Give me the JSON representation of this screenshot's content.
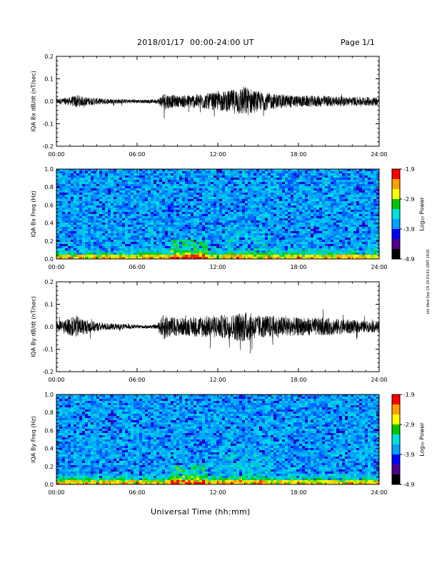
{
  "header": {
    "title": "2018/01/17  00:00-24:00 UT",
    "page": "Page 1/1"
  },
  "footer": {
    "xlabel": "Universal Time (hh:mm)",
    "stamp": "ktk Wed Sep 19 19:03:41 GMT 2018"
  },
  "x_ticks": [
    "00:00",
    "06:00",
    "12:00",
    "18:00",
    "24:00"
  ],
  "colorbar": {
    "label": "Log₁₀ Power",
    "ticks": [
      "-1.9",
      "-2.9",
      "-3.9",
      "-4.9"
    ],
    "colors": [
      "#ff0000",
      "#ffa000",
      "#ffff00",
      "#00c800",
      "#00e0e0",
      "#00a0ff",
      "#0000ff",
      "#500090",
      "#000000"
    ]
  },
  "chart_data": [
    {
      "type": "line",
      "title": "",
      "xlabel": "",
      "ylabel": "IQA Bx dB/dt (nT/sec)",
      "xlim": [
        0,
        24
      ],
      "ylim": [
        -0.2,
        0.2
      ],
      "yticks": [
        "0.2",
        "0.1",
        "0.0",
        "-0.1",
        "-0.2"
      ],
      "envelope": {
        "x": [
          0,
          1,
          1.5,
          2,
          3,
          4,
          5,
          6,
          7,
          7.5,
          8,
          8.5,
          9,
          10,
          11,
          12,
          13,
          14,
          15,
          16,
          17,
          18,
          19,
          20,
          21,
          22,
          23,
          24
        ],
        "y": [
          0.012,
          0.018,
          0.03,
          0.02,
          0.015,
          0.012,
          0.01,
          0.008,
          0.008,
          0.01,
          0.04,
          0.03,
          0.025,
          0.03,
          0.035,
          0.04,
          0.05,
          0.07,
          0.045,
          0.035,
          0.03,
          0.025,
          0.025,
          0.025,
          0.022,
          0.02,
          0.02,
          0.02
        ]
      }
    },
    {
      "type": "heatmap",
      "title": "",
      "xlabel": "",
      "ylabel": "IQA Bx Freq (Hz)",
      "xlim": [
        0,
        24
      ],
      "ylim": [
        0.0,
        1.0
      ],
      "zlim": [
        -4.9,
        -1.9
      ],
      "zlabel": "Log₁₀ Power",
      "yticks": [
        "1.0",
        "0.8",
        "0.6",
        "0.4",
        "0.2",
        "0.0"
      ]
    },
    {
      "type": "line",
      "title": "",
      "xlabel": "",
      "ylabel": "IQA By dB/dt (nT/sec)",
      "xlim": [
        0,
        24
      ],
      "ylim": [
        -0.2,
        0.2
      ],
      "yticks": [
        "0.2",
        "0.1",
        "0.0",
        "-0.1",
        "-0.2"
      ],
      "envelope": {
        "x": [
          0,
          1,
          1.5,
          2,
          3,
          4,
          5,
          6,
          7,
          7.5,
          8,
          8.5,
          9,
          10,
          11,
          12,
          13,
          14,
          15,
          16,
          17,
          18,
          19,
          20,
          21,
          22,
          23,
          24
        ],
        "y": [
          0.02,
          0.04,
          0.05,
          0.035,
          0.02,
          0.015,
          0.012,
          0.008,
          0.008,
          0.01,
          0.06,
          0.045,
          0.04,
          0.04,
          0.05,
          0.05,
          0.055,
          0.07,
          0.05,
          0.05,
          0.045,
          0.04,
          0.04,
          0.04,
          0.035,
          0.03,
          0.025,
          0.025
        ]
      }
    },
    {
      "type": "heatmap",
      "title": "",
      "xlabel": "Universal Time (hh:mm)",
      "ylabel": "IQA By Freq (Hz)",
      "xlim": [
        0,
        24
      ],
      "ylim": [
        0.0,
        1.0
      ],
      "zlim": [
        -4.9,
        -1.9
      ],
      "zlabel": "Log₁₀ Power",
      "yticks": [
        "1.0",
        "0.8",
        "0.6",
        "0.4",
        "0.2",
        "0.0"
      ]
    }
  ]
}
